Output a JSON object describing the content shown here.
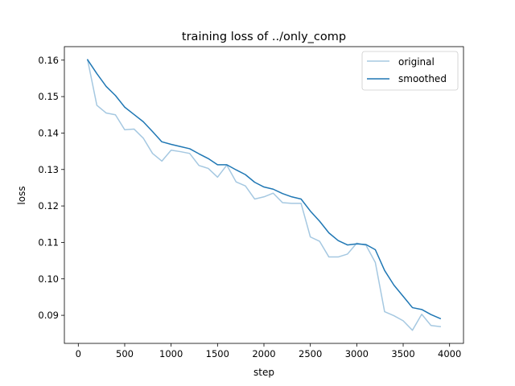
{
  "chart_data": {
    "type": "line",
    "title": "training loss of ../only_comp",
    "xlabel": "step",
    "ylabel": "loss",
    "xlim": [
      -150,
      4150
    ],
    "ylim": [
      0.0823,
      0.1637
    ],
    "xticks": [
      0,
      500,
      1000,
      1500,
      2000,
      2500,
      3000,
      3500,
      4000
    ],
    "yticks": [
      0.09,
      0.1,
      0.11,
      0.12,
      0.13,
      0.14,
      0.15,
      0.16
    ],
    "ytick_labels": [
      "0.09",
      "0.10",
      "0.11",
      "0.12",
      "0.13",
      "0.14",
      "0.15",
      "0.16"
    ],
    "legend": "top-right",
    "grid": false,
    "x": [
      100,
      200,
      300,
      400,
      500,
      600,
      700,
      800,
      900,
      1000,
      1100,
      1200,
      1300,
      1400,
      1500,
      1600,
      1700,
      1800,
      1900,
      2000,
      2100,
      2200,
      2300,
      2400,
      2500,
      2600,
      2700,
      2800,
      2900,
      3000,
      3100,
      3200,
      3300,
      3400,
      3500,
      3600,
      3700,
      3800,
      3900
    ],
    "series": [
      {
        "name": "original",
        "color": "#a5c8e1",
        "values": [
          0.1601,
          0.1476,
          0.1455,
          0.145,
          0.1409,
          0.1411,
          0.1386,
          0.1344,
          0.1323,
          0.1353,
          0.1349,
          0.1344,
          0.1311,
          0.1303,
          0.1279,
          0.1312,
          0.1266,
          0.1255,
          0.1219,
          0.1225,
          0.1235,
          0.1209,
          0.1207,
          0.1207,
          0.1115,
          0.1103,
          0.106,
          0.106,
          0.1068,
          0.1098,
          0.1092,
          0.1045,
          0.091,
          0.0899,
          0.0885,
          0.0859,
          0.0903,
          0.0872,
          0.0869
        ]
      },
      {
        "name": "smoothed",
        "color": "#1f77b4",
        "values": [
          0.1601,
          0.1563,
          0.1528,
          0.1503,
          0.1471,
          0.1451,
          0.1431,
          0.1404,
          0.1376,
          0.1369,
          0.1363,
          0.1357,
          0.1343,
          0.133,
          0.1313,
          0.1313,
          0.1299,
          0.1286,
          0.1265,
          0.1252,
          0.1246,
          0.1234,
          0.1225,
          0.1219,
          0.1186,
          0.1158,
          0.1126,
          0.1105,
          0.1093,
          0.1096,
          0.1094,
          0.108,
          0.1023,
          0.0983,
          0.0952,
          0.0921,
          0.0916,
          0.0902,
          0.0891
        ]
      }
    ]
  }
}
